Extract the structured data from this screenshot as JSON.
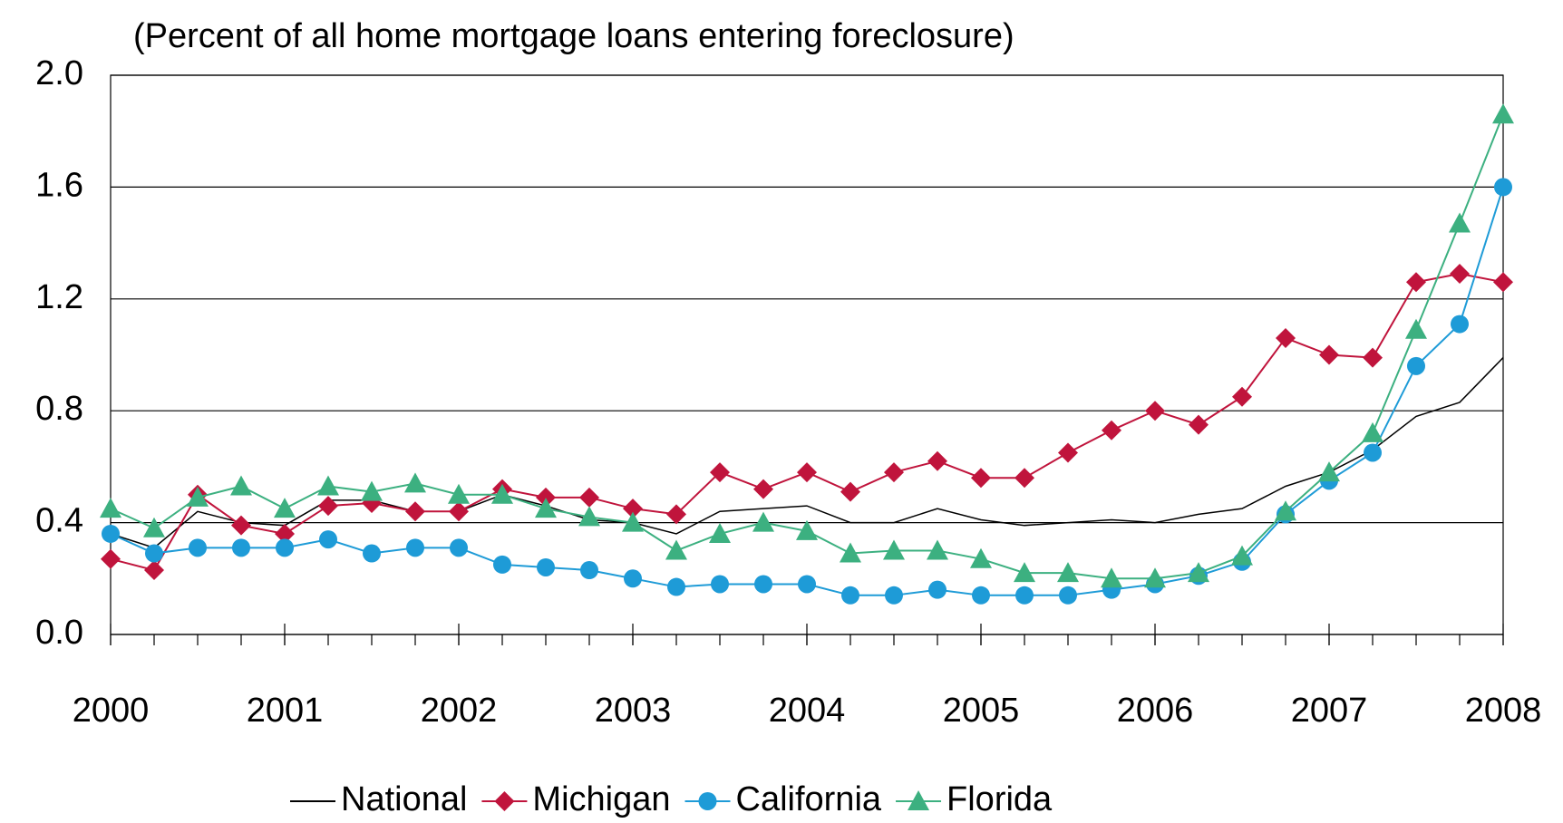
{
  "chart_data": {
    "type": "line",
    "title": "(Percent of all home mortgage loans entering foreclosure)",
    "x": [
      2000,
      2000.25,
      2000.5,
      2000.75,
      2001,
      2001.25,
      2001.5,
      2001.75,
      2002,
      2002.25,
      2002.5,
      2002.75,
      2003,
      2003.25,
      2003.5,
      2003.75,
      2004,
      2004.25,
      2004.5,
      2004.75,
      2005,
      2005.25,
      2005.5,
      2005.75,
      2006,
      2006.25,
      2006.5,
      2006.75,
      2007,
      2007.25,
      2007.5,
      2007.75,
      2008
    ],
    "series": [
      {
        "name": "National",
        "color": "#000000",
        "marker": "none",
        "values": [
          0.36,
          0.31,
          0.44,
          0.4,
          0.39,
          0.48,
          0.48,
          0.44,
          0.44,
          0.5,
          0.46,
          0.41,
          0.4,
          0.36,
          0.44,
          0.45,
          0.46,
          0.4,
          0.4,
          0.45,
          0.41,
          0.39,
          0.4,
          0.41,
          0.4,
          0.43,
          0.45,
          0.53,
          0.58,
          0.66,
          0.78,
          0.83,
          0.99
        ]
      },
      {
        "name": "Michigan",
        "color": "#c0143c",
        "marker": "diamond",
        "values": [
          0.27,
          0.23,
          0.5,
          0.39,
          0.36,
          0.46,
          0.47,
          0.44,
          0.44,
          0.52,
          0.49,
          0.49,
          0.45,
          0.43,
          0.58,
          0.52,
          0.58,
          0.51,
          0.58,
          0.62,
          0.56,
          0.56,
          0.65,
          0.73,
          0.8,
          0.75,
          0.85,
          1.06,
          1.0,
          0.99,
          1.26,
          1.29,
          1.26
        ]
      },
      {
        "name": "California",
        "color": "#1e9bd7",
        "marker": "circle",
        "values": [
          0.36,
          0.29,
          0.31,
          0.31,
          0.31,
          0.34,
          0.29,
          0.31,
          0.31,
          0.25,
          0.24,
          0.23,
          0.2,
          0.17,
          0.18,
          0.18,
          0.18,
          0.14,
          0.14,
          0.16,
          0.14,
          0.14,
          0.14,
          0.16,
          0.18,
          0.21,
          0.26,
          0.43,
          0.55,
          0.65,
          0.96,
          1.11,
          1.6
        ]
      },
      {
        "name": "Florida",
        "color": "#3cb080",
        "marker": "triangle",
        "values": [
          0.45,
          0.38,
          0.49,
          0.53,
          0.45,
          0.53,
          0.51,
          0.54,
          0.5,
          0.5,
          0.45,
          0.42,
          0.4,
          0.3,
          0.36,
          0.4,
          0.37,
          0.29,
          0.3,
          0.3,
          0.27,
          0.22,
          0.22,
          0.2,
          0.2,
          0.22,
          0.28,
          0.44,
          0.58,
          0.72,
          1.09,
          1.47,
          1.86
        ]
      }
    ],
    "xlim": [
      2000,
      2008
    ],
    "xticks": [
      2000,
      2001,
      2002,
      2003,
      2004,
      2005,
      2006,
      2007,
      2008
    ],
    "ylim": [
      0,
      2
    ],
    "yticks": [
      {
        "value": 0,
        "label": "0.0"
      },
      0.4,
      0.8,
      1.2,
      1.6,
      {
        "value": 2,
        "label": "2.0"
      }
    ],
    "grid": true,
    "legend": "bottom"
  }
}
